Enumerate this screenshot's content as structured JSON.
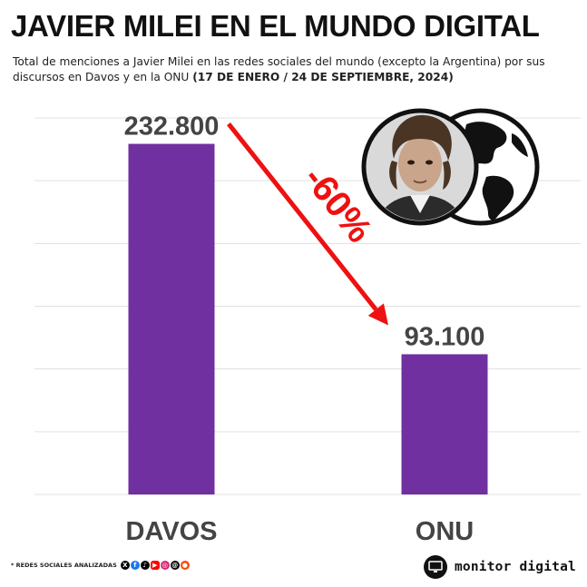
{
  "title": "JAVIER MILEI EN EL MUNDO DIGITAL",
  "subtitle_text": "Total de menciones a Javier Milei en las redes sociales del mundo (excepto la Argentina) por sus discursos en Davos y en la ONU",
  "subtitle_dates": "(17 DE ENERO / 24 DE SEPTIEMBRE, 2024)",
  "footer": {
    "note": "* REDES SOCIALES ANALIZADAS",
    "social_icons": [
      "x-icon",
      "facebook-icon",
      "tiktok-icon",
      "youtube-icon",
      "instagram-icon",
      "threads-icon",
      "reddit-icon"
    ],
    "brand": "monitor digital"
  },
  "colors": {
    "bar": "#7030A0",
    "arrow": "#EE1111",
    "grid": "#E0E0E0",
    "text": "#444444"
  },
  "chart_data": {
    "type": "bar",
    "categories": [
      "DAVOS",
      "ONU"
    ],
    "values": [
      232800,
      93100
    ],
    "data_labels": [
      "232.800",
      "93.100"
    ],
    "annotation": "-60%",
    "title": "",
    "xlabel": "",
    "ylabel": "",
    "ylim": [
      0,
      250000
    ],
    "grid": true,
    "legend": "none"
  }
}
